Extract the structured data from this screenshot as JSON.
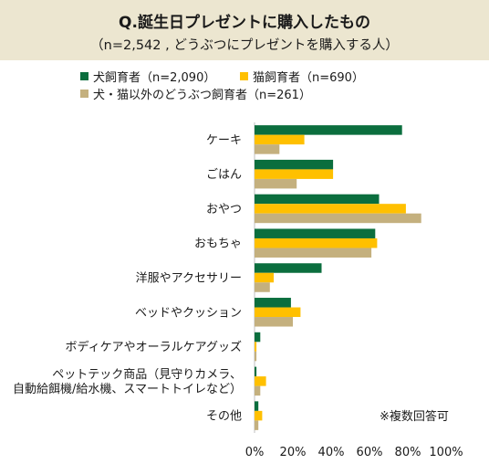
{
  "header": {
    "title": "Q.誕生日プレゼントに購入したもの",
    "subtitle": "（n=2,542 , どうぶつにプレゼントを購入する人）"
  },
  "note": "※複数回答可",
  "colors": {
    "header_bg": "#ece6d0",
    "dog": "#0b6e3e",
    "cat": "#ffc000",
    "other": "#c4b07e"
  },
  "chart_data": {
    "type": "bar",
    "orientation": "horizontal",
    "title": "Q.誕生日プレゼントに購入したもの",
    "subtitle": "（n=2,542 , どうぶつにプレゼントを購入する人）",
    "categories": [
      "ケーキ",
      "ごはん",
      "おやつ",
      "おもちゃ",
      "洋服やアクセサリー",
      "ベッドやクッション",
      "ボディケアやオーラルケアグッズ",
      "ペットテック商品（見守りカメラ、\n自動給餌機/給水機、スマートトイレなど）",
      "その他"
    ],
    "series": [
      {
        "name": "犬飼育者（n=2,090）",
        "color": "#0b6e3e",
        "values": [
          77,
          41,
          65,
          63,
          35,
          19,
          3,
          1,
          2
        ]
      },
      {
        "name": "猫飼育者（n=690）",
        "color": "#ffc000",
        "values": [
          26,
          41,
          79,
          64,
          10,
          24,
          1,
          6,
          4
        ]
      },
      {
        "name": "犬・猫以外のどうぶつ飼育者（n=261）",
        "color": "#c4b07e",
        "values": [
          13,
          22,
          87,
          61,
          8,
          20,
          1,
          3,
          2
        ]
      }
    ],
    "xlim": [
      0,
      100
    ],
    "xticks": [
      "0%",
      "20%",
      "40%",
      "60%",
      "80%",
      "100%"
    ],
    "legend_position": "top",
    "grid": false,
    "note": "※複数回答可"
  }
}
